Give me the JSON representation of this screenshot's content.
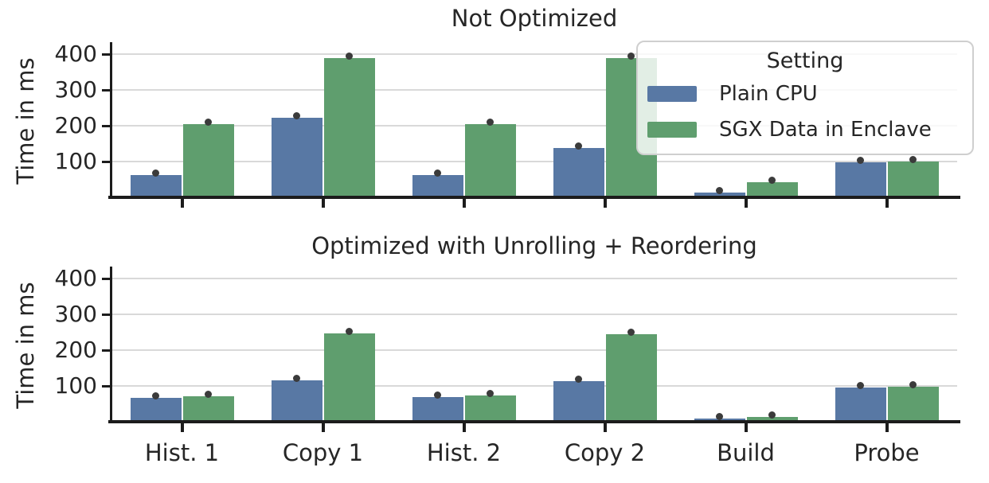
{
  "figure": {
    "background": "#ffffff"
  },
  "colors": {
    "plain_cpu": "#5878a4",
    "sgx_enclave": "#5f9e6e",
    "mean_dot": "#3b3b3b",
    "gridline": "#d9d9d9",
    "axis": "#1c1c1c",
    "text": "#262626",
    "legend_border": "#cfcfcf"
  },
  "legend": {
    "title": "Setting",
    "entries": [
      {
        "label": "Plain CPU",
        "color": "#5878a4"
      },
      {
        "label": "SGX Data in Enclave",
        "color": "#5f9e6e"
      }
    ]
  },
  "chart_data": [
    {
      "type": "bar",
      "title": "Not Optimized",
      "xlabel": "",
      "ylabel": "Time in ms",
      "categories": [
        "Hist. 1",
        "Copy 1",
        "Hist. 2",
        "Copy 2",
        "Build",
        "Probe"
      ],
      "yticks": [
        100,
        200,
        300,
        400
      ],
      "ylim": [
        0,
        430
      ],
      "grid": true,
      "show_x_labels": false,
      "point_markers": true,
      "legend_position": "upper right",
      "series": [
        {
          "name": "Plain CPU",
          "color": "#5878a4",
          "values": [
            63,
            222,
            63,
            139,
            14,
            99
          ]
        },
        {
          "name": "SGX Data in Enclave",
          "color": "#5f9e6e",
          "values": [
            204,
            390,
            204,
            390,
            43,
            101
          ]
        }
      ]
    },
    {
      "type": "bar",
      "title": "Optimized with Unrolling + Reordering",
      "xlabel": "",
      "ylabel": "Time in ms",
      "categories": [
        "Hist. 1",
        "Copy 1",
        "Hist. 2",
        "Copy 2",
        "Build",
        "Probe"
      ],
      "yticks": [
        100,
        200,
        300,
        400
      ],
      "ylim": [
        0,
        430
      ],
      "grid": true,
      "show_x_labels": true,
      "point_markers": true,
      "legend_position": "none",
      "series": [
        {
          "name": "Plain CPU",
          "color": "#5878a4",
          "values": [
            66,
            116,
            69,
            113,
            10,
            95
          ]
        },
        {
          "name": "SGX Data in Enclave",
          "color": "#5f9e6e",
          "values": [
            72,
            248,
            73,
            245,
            13,
            99
          ]
        }
      ]
    }
  ]
}
